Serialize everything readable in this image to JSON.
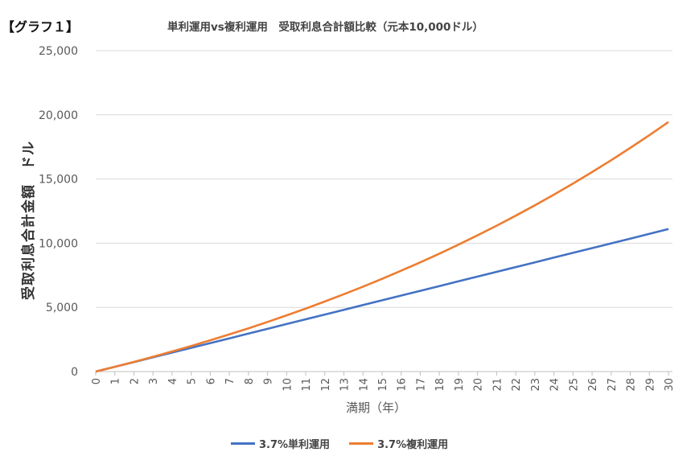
{
  "corner_label": "【グラフ１】",
  "chart_data": {
    "type": "line",
    "title": "単利運用vs複利運用　受取利息合計額比較（元本10,000ドル）",
    "xlabel": "満期（年）",
    "ylabel": "受取利息合計金額　ドル",
    "x": [
      0,
      1,
      2,
      3,
      4,
      5,
      6,
      7,
      8,
      9,
      10,
      11,
      12,
      13,
      14,
      15,
      16,
      17,
      18,
      19,
      20,
      21,
      22,
      23,
      24,
      25,
      26,
      27,
      28,
      29,
      30
    ],
    "ylim": [
      0,
      25000
    ],
    "yticks": [
      0,
      5000,
      10000,
      15000,
      20000,
      25000
    ],
    "ytick_labels": [
      "0",
      "5,000",
      "10,000",
      "15,000",
      "20,000",
      "25,000"
    ],
    "grid": "horizontal",
    "legend_position": "bottom",
    "series": [
      {
        "name": "3.7%単利運用",
        "color": "#4472c4",
        "values": [
          0,
          370,
          740,
          1110,
          1480,
          1850,
          2220,
          2590,
          2960,
          3330,
          3700,
          4070,
          4440,
          4810,
          5180,
          5550,
          5920,
          6290,
          6660,
          7030,
          7400,
          7770,
          8140,
          8510,
          8880,
          9250,
          9620,
          9990,
          10360,
          10730,
          11100
        ]
      },
      {
        "name": "3.7%複利運用",
        "color": "#ed7d31",
        "values": [
          0,
          370,
          754,
          1152,
          1565,
          1993,
          2436,
          2897,
          3373,
          3868,
          4379,
          4909,
          5458,
          6026,
          6615,
          7225,
          7857,
          8511,
          9188,
          9890,
          10615,
          11367,
          12145,
          12951,
          13785,
          14648,
          15542,
          16467,
          17425,
          18416,
          19442
        ]
      }
    ]
  }
}
